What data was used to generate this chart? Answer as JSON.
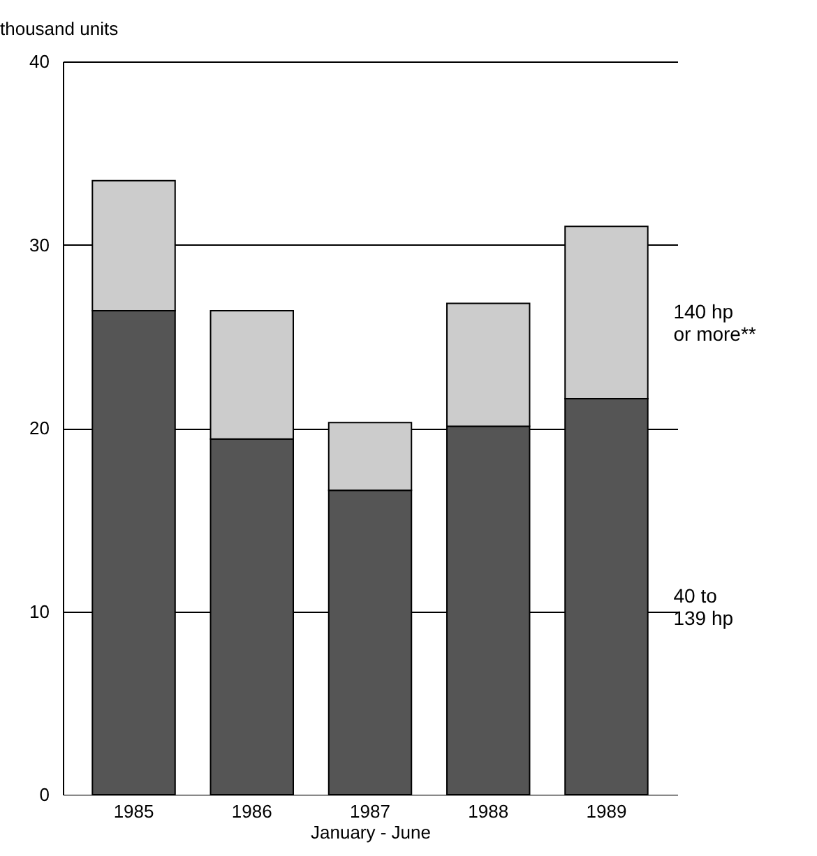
{
  "chart_data": {
    "type": "bar",
    "stacked": true,
    "ylabel": "thousand units",
    "xlabel": "January - June",
    "categories": [
      "1985",
      "1986",
      "1987",
      "1988",
      "1989"
    ],
    "series": [
      {
        "name": "40 to\n139 hp",
        "color": "#555555",
        "values": [
          26.4,
          19.4,
          16.6,
          20.1,
          21.6
        ]
      },
      {
        "name": "140 hp\nor more**",
        "color": "#cccccc",
        "values": [
          7.1,
          7.0,
          3.7,
          6.7,
          9.4
        ]
      }
    ],
    "ylim": [
      0,
      40
    ],
    "yticks": [
      0,
      10,
      20,
      30,
      40
    ],
    "grid": "y",
    "legend": false
  }
}
